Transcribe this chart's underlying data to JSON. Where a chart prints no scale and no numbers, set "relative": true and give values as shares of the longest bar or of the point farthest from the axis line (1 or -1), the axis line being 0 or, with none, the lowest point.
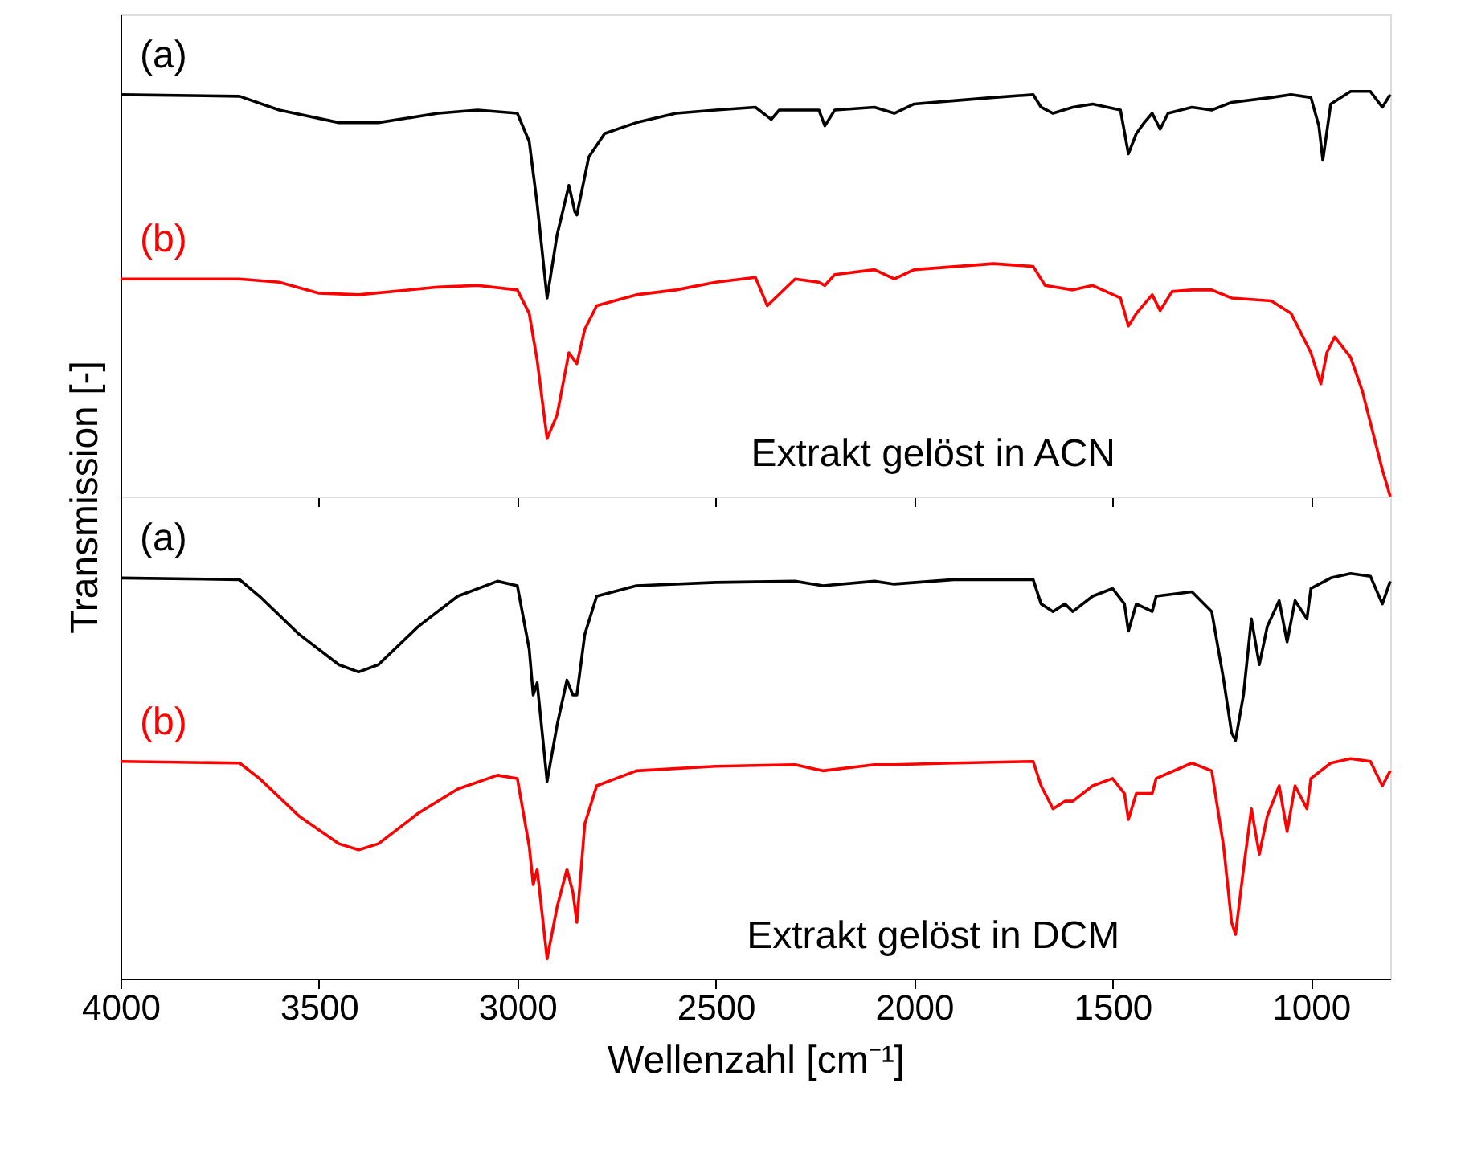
{
  "chart_data": [
    {
      "type": "line",
      "relative": true,
      "ylabel": "Transmission [-]",
      "xlim": [
        4000,
        800
      ],
      "xticks": [
        4000,
        3500,
        3000,
        2500,
        2000,
        1500,
        1000
      ],
      "tick_labels": false,
      "grid": false,
      "legend": false,
      "line_style": "solid",
      "marker": "none",
      "annotations": [
        "Extrakt gelöst in ACN"
      ],
      "x": [
        4000,
        3700,
        3600,
        3450,
        3350,
        3200,
        3100,
        3000,
        2970,
        2950,
        2925,
        2900,
        2870,
        2855,
        2850,
        2820,
        2780,
        2700,
        2600,
        2500,
        2400,
        2360,
        2340,
        2240,
        2225,
        2200,
        2100,
        2050,
        2000,
        1900,
        1800,
        1700,
        1680,
        1650,
        1600,
        1550,
        1480,
        1460,
        1440,
        1420,
        1400,
        1380,
        1360,
        1300,
        1250,
        1200,
        1100,
        1050,
        1000,
        980,
        970,
        950,
        900,
        850,
        820,
        800
      ],
      "series": [
        {
          "name": "(a)",
          "color": "#000000",
          "values": [
            0.992,
            0.988,
            0.954,
            0.923,
            0.923,
            0.946,
            0.954,
            0.946,
            0.876,
            0.722,
            0.49,
            0.645,
            0.768,
            0.703,
            0.695,
            0.838,
            0.896,
            0.923,
            0.946,
            0.954,
            0.961,
            0.931,
            0.954,
            0.954,
            0.915,
            0.954,
            0.961,
            0.946,
            0.969,
            0.977,
            0.985,
            0.992,
            0.961,
            0.946,
            0.961,
            0.969,
            0.954,
            0.846,
            0.896,
            0.923,
            0.946,
            0.907,
            0.946,
            0.961,
            0.954,
            0.973,
            0.985,
            0.992,
            0.985,
            0.915,
            0.83,
            0.969,
            1.0,
            1.0,
            0.961,
            0.992
          ]
        },
        {
          "name": "(b)",
          "color": "#ff0000",
          "x": [
            4000,
            3700,
            3600,
            3500,
            3400,
            3200,
            3100,
            3000,
            2970,
            2950,
            2925,
            2900,
            2870,
            2850,
            2830,
            2800,
            2700,
            2600,
            2500,
            2400,
            2370,
            2350,
            2300,
            2240,
            2225,
            2200,
            2100,
            2050,
            2000,
            1800,
            1700,
            1670,
            1600,
            1550,
            1480,
            1460,
            1440,
            1400,
            1380,
            1350,
            1300,
            1250,
            1200,
            1100,
            1050,
            1000,
            975,
            960,
            940,
            900,
            870,
            840,
            820,
            800
          ],
          "values": [
            0.537,
            0.537,
            0.529,
            0.502,
            0.498,
            0.517,
            0.521,
            0.51,
            0.452,
            0.336,
            0.143,
            0.201,
            0.355,
            0.328,
            0.413,
            0.471,
            0.498,
            0.51,
            0.529,
            0.541,
            0.471,
            0.49,
            0.537,
            0.529,
            0.521,
            0.548,
            0.56,
            0.537,
            0.56,
            0.575,
            0.568,
            0.521,
            0.51,
            0.521,
            0.49,
            0.421,
            0.452,
            0.498,
            0.459,
            0.506,
            0.51,
            0.51,
            0.49,
            0.483,
            0.452,
            0.355,
            0.278,
            0.355,
            0.394,
            0.344,
            0.259,
            0.143,
            0.066,
            0.0
          ]
        }
      ]
    },
    {
      "type": "line",
      "relative": true,
      "xlabel": "Wellenzahl [cm⁻¹]",
      "xlim": [
        4000,
        800
      ],
      "xticks": [
        4000,
        3500,
        3000,
        2500,
        2000,
        1500,
        1000
      ],
      "tick_labels": "x",
      "grid": false,
      "legend": false,
      "line_style": "solid",
      "marker": "none",
      "annotations": [
        "Extrakt gelöst in DCM"
      ],
      "x": [
        4000,
        3700,
        3650,
        3550,
        3450,
        3400,
        3350,
        3250,
        3150,
        3050,
        3000,
        2970,
        2960,
        2950,
        2925,
        2900,
        2875,
        2860,
        2850,
        2830,
        2800,
        2700,
        2500,
        2300,
        2230,
        2100,
        2050,
        1900,
        1700,
        1680,
        1650,
        1620,
        1600,
        1550,
        1500,
        1470,
        1460,
        1440,
        1400,
        1390,
        1300,
        1250,
        1220,
        1200,
        1190,
        1170,
        1150,
        1130,
        1110,
        1080,
        1060,
        1040,
        1010,
        1000,
        950,
        900,
        850,
        820,
        800
      ],
      "series": [
        {
          "name": "(a)",
          "color": "#000000",
          "values": [
            0.989,
            0.985,
            0.944,
            0.85,
            0.775,
            0.757,
            0.775,
            0.869,
            0.944,
            0.981,
            0.97,
            0.813,
            0.7,
            0.73,
            0.487,
            0.625,
            0.737,
            0.7,
            0.7,
            0.85,
            0.944,
            0.97,
            0.978,
            0.981,
            0.97,
            0.981,
            0.974,
            0.985,
            0.985,
            0.925,
            0.906,
            0.925,
            0.906,
            0.944,
            0.963,
            0.925,
            0.858,
            0.925,
            0.906,
            0.944,
            0.955,
            0.906,
            0.738,
            0.607,
            0.588,
            0.7,
            0.888,
            0.775,
            0.869,
            0.933,
            0.831,
            0.933,
            0.888,
            0.963,
            0.989,
            1.0,
            0.993,
            0.925,
            0.981
          ]
        },
        {
          "name": "(b)",
          "color": "#ff0000",
          "values": [
            0.536,
            0.532,
            0.494,
            0.401,
            0.333,
            0.318,
            0.333,
            0.408,
            0.468,
            0.502,
            0.494,
            0.326,
            0.232,
            0.27,
            0.049,
            0.176,
            0.27,
            0.213,
            0.139,
            0.382,
            0.476,
            0.513,
            0.524,
            0.528,
            0.513,
            0.528,
            0.528,
            0.532,
            0.536,
            0.476,
            0.419,
            0.438,
            0.438,
            0.476,
            0.494,
            0.457,
            0.393,
            0.457,
            0.457,
            0.494,
            0.532,
            0.513,
            0.326,
            0.139,
            0.109,
            0.27,
            0.419,
            0.307,
            0.401,
            0.476,
            0.363,
            0.476,
            0.419,
            0.494,
            0.532,
            0.543,
            0.536,
            0.476,
            0.513
          ]
        }
      ]
    }
  ]
}
